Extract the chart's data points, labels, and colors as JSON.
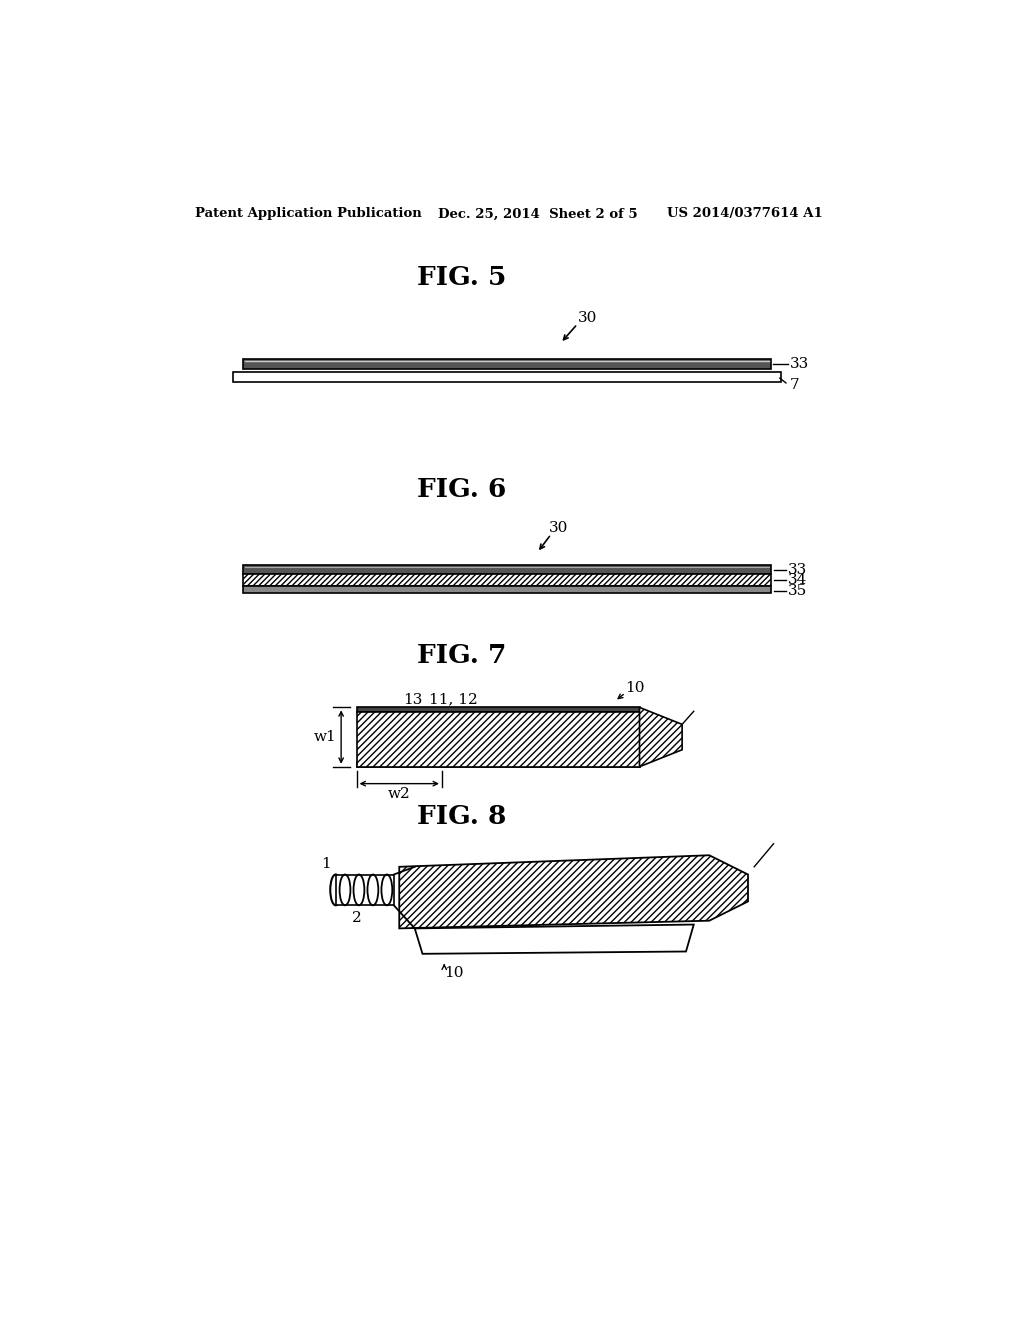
{
  "bg_color": "#ffffff",
  "header_left": "Patent Application Publication",
  "header_mid": "Dec. 25, 2014  Sheet 2 of 5",
  "header_right": "US 2014/0377614 A1",
  "fig5_title": "FIG. 5",
  "fig6_title": "FIG. 6",
  "fig7_title": "FIG. 7",
  "fig8_title": "FIG. 8",
  "font_family": "DejaVu Serif"
}
